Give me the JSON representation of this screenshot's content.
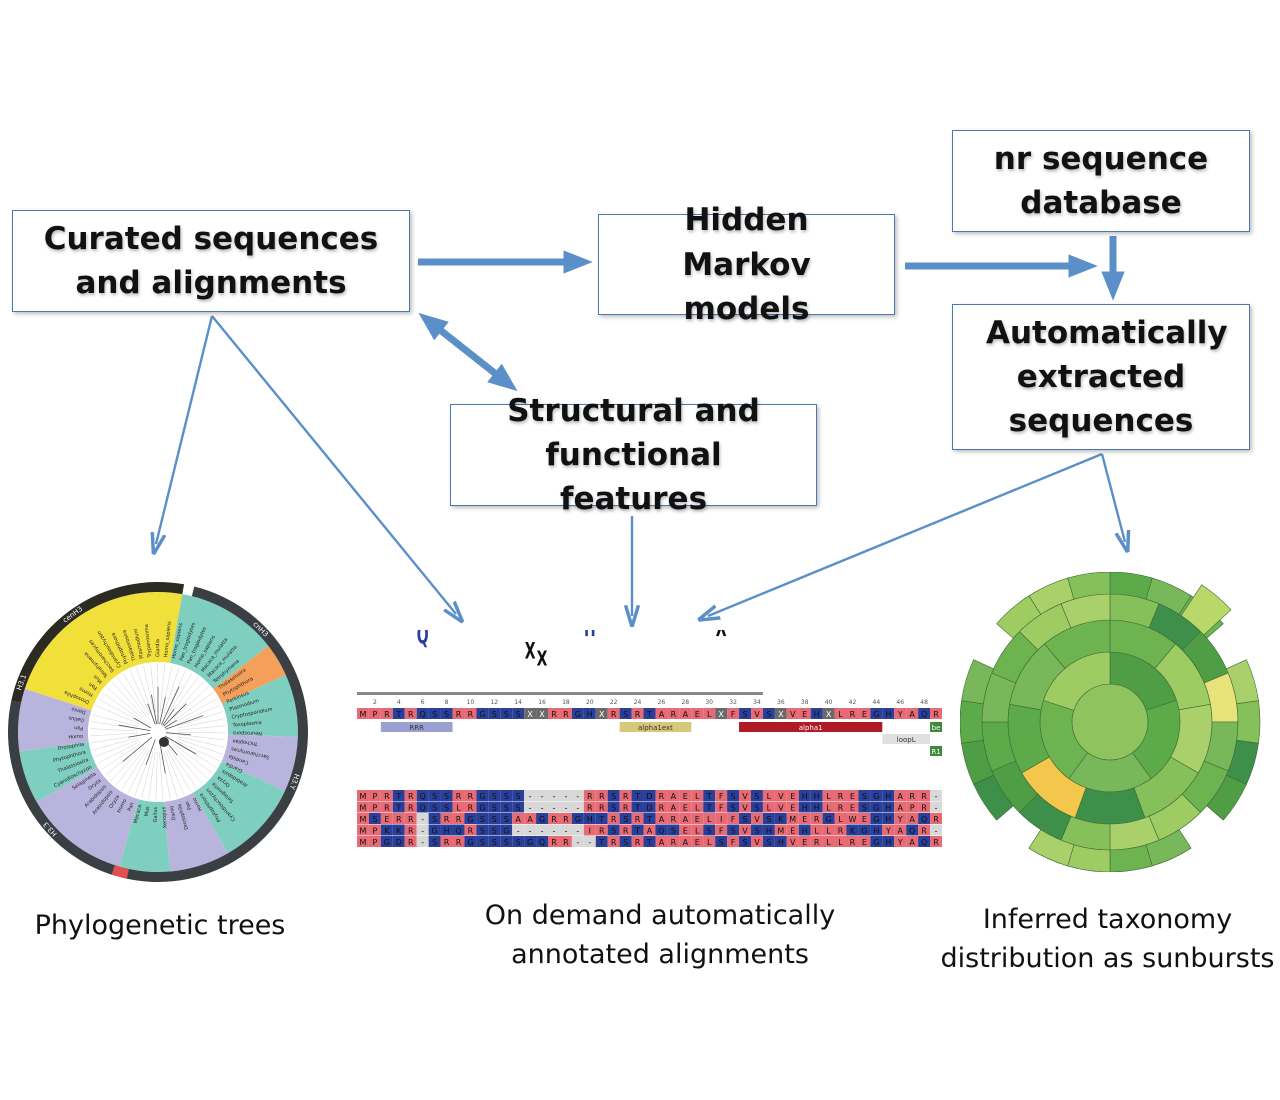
{
  "boxes": {
    "curated": "Curated sequences and alignments",
    "hmm": "Hidden Markov models",
    "nr": "nr sequence database",
    "auto": "Automatically extracted sequences",
    "struct": "Structural and functional features"
  },
  "captions": {
    "phylo": "Phylogenetic trees",
    "alignments": "On demand automatically annotated alignments",
    "sunburst": "Inferred taxonomy distribution as sunbursts"
  },
  "alignment": {
    "consensus": "MPRTRQSSRRGSSSXXRRGHXRSRTARAELXFSVSXVEHXLREGHYAQR",
    "positions": [
      "2",
      "4",
      "6",
      "8",
      "10",
      "12",
      "14",
      "16",
      "18",
      "20",
      "22",
      "24",
      "26",
      "28",
      "30",
      "32",
      "34",
      "36",
      "38",
      "40",
      "42",
      "44",
      "46",
      "48"
    ],
    "features": [
      "RRR",
      "alpha1ext",
      "alpha1",
      "loopL",
      "be",
      "R1"
    ],
    "rows": [
      "MPRTRQSSRRGSSS-----RRSRTDRAELTFSVSLVEHHLRESGHARR",
      "MPRTRQSSLRGSSS-----RRSRTDRAELTFSVSLVEHHLRESGHAPR",
      "MSERR-SRRGSSSAAGRRGHTRSRTARAELIFSVSKMERGLWEGHYAQR",
      "MPKKR-GHQRSSG------IRSRTAQSELSFSVSHMEHLLRKGHYAQR",
      "MPGDR-SRRGSSSSGQRR--TRSRTARAELSFSVSHVERLLREGHYAQR"
    ]
  },
  "tree": {
    "ring_labels": [
      "cenH3",
      "cnH3",
      "H3.Y",
      "H3.3",
      "H3.1"
    ],
    "leaves": [
      "Drosophila",
      "Homo",
      "Pan",
      "Mus",
      "Tetrahymena",
      "Saccharomyces",
      "Cyanidioschyzon",
      "Phytophthora",
      "Thalassiosira",
      "Plasmodium",
      "Trypanosoma",
      "Giardia",
      "Homo_sapiens",
      "Homo_sapiens",
      "Pan_troglodytes",
      "Pan_troglodytes",
      "Homo_sapiens",
      "Macaca_mulatta",
      "Macaca_mulatta",
      "Tetrahymena",
      "Thalassiosira",
      "Phytophthora",
      "Perkinsus",
      "Plasmodium",
      "Cryptosporidium",
      "Toxoplasma",
      "Neurospora",
      "Trichoplax",
      "Saccharomyces",
      "Candida",
      "Giardia",
      "Arabidopsis",
      "Oryza",
      "Selaginella",
      "Cyanidioschyzon",
      "Phytophthora",
      "Homo",
      "Pan",
      "Drosophila",
      "Danio",
      "Xenopus",
      "Gallus",
      "Mus",
      "Macaca",
      "Pan",
      "Homo",
      "Oryza",
      "Arabidopsis",
      "Arabidopsis",
      "Oryza",
      "Selaginella",
      "Cyanidioschyzon",
      "Thalassiosira",
      "Phytophthora",
      "Drosophila",
      "Homo",
      "Pan",
      "Gallus",
      "Danio"
    ]
  },
  "colors": {
    "arrow": "#5b8fc7",
    "box_border": "#4a78b0",
    "hydrophobic_red": "#e86a74",
    "polar_blue": "#2a3f9a",
    "gap_grey": "#6a6a6a",
    "tree_yellow": "#f2e03a",
    "tree_teal": "#7fcfc0",
    "tree_lavender": "#b9b4de",
    "tree_orange": "#f5a05a",
    "sunburst_green": "#6fbf5a"
  }
}
